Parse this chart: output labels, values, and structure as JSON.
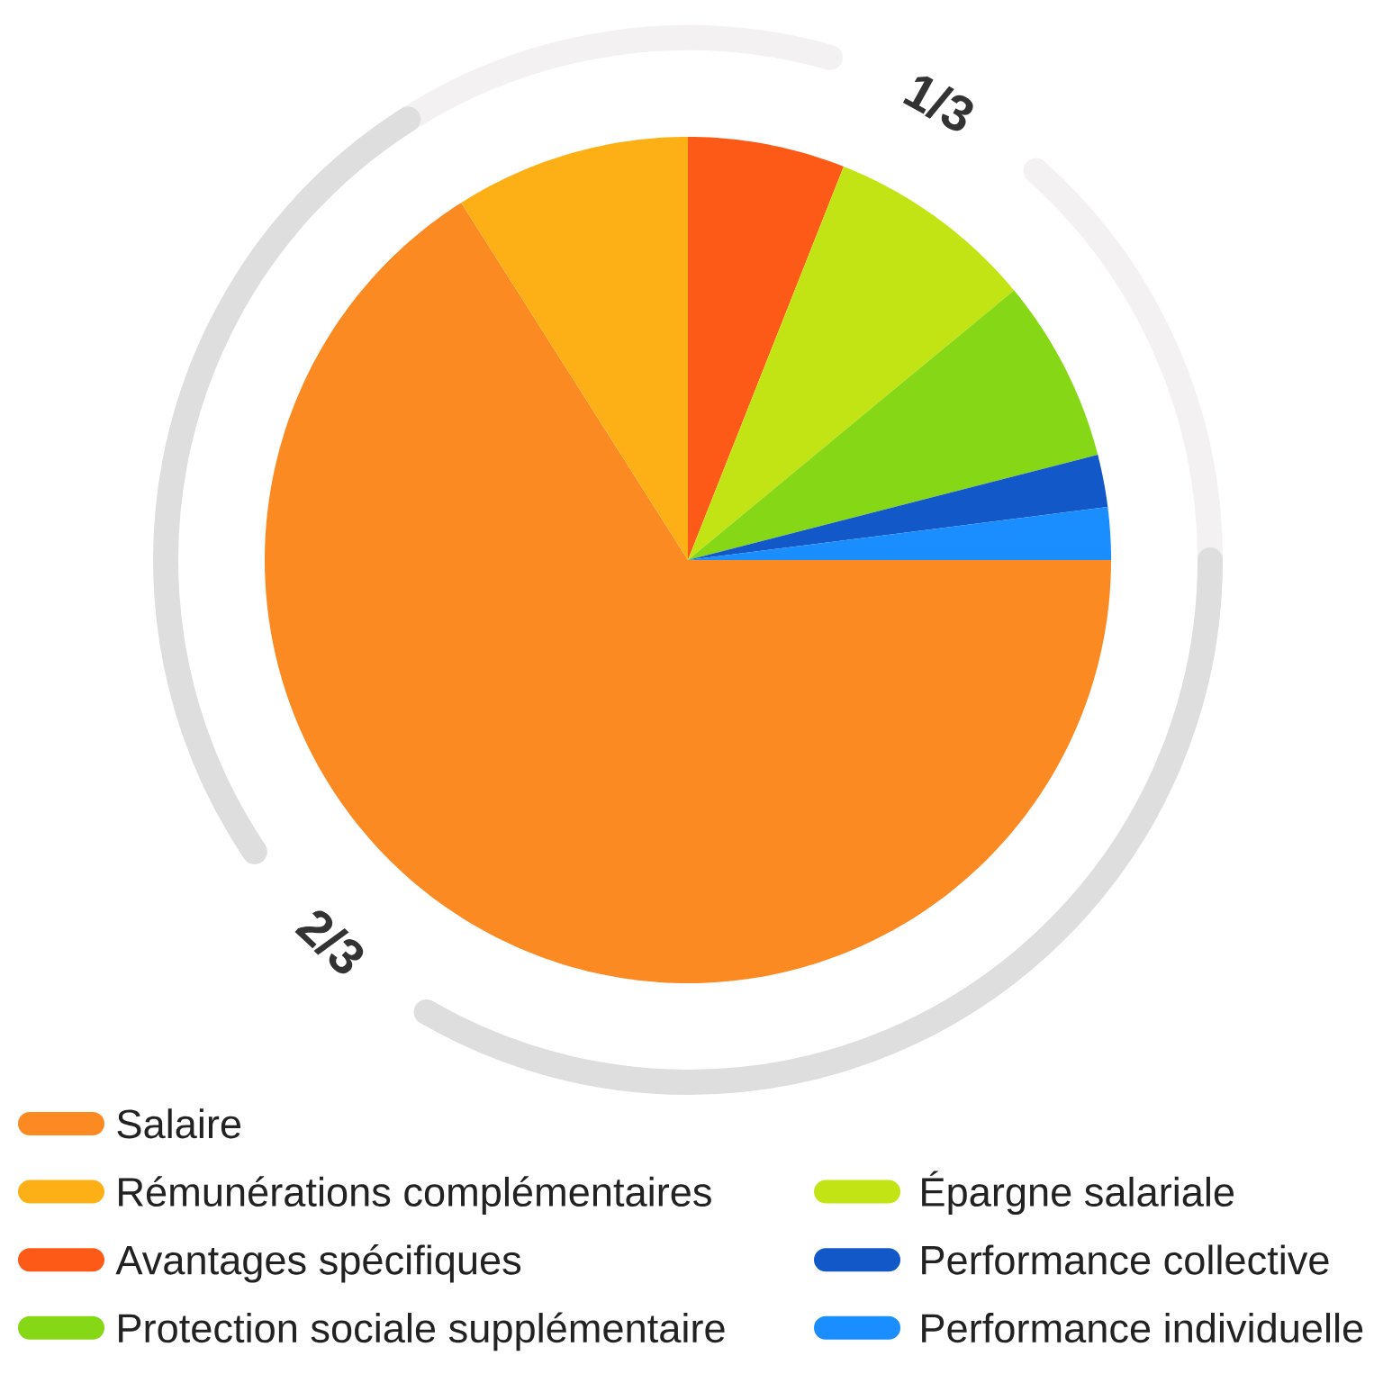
{
  "chart_data": {
    "type": "pie",
    "categories": [
      "Salaire",
      "Rémunérations complémentaires",
      "Avantages spécifiques",
      "Épargne salariale",
      "Protection sociale supplémentaire",
      "Performance collective",
      "Performance individuelle"
    ],
    "values": [
      66,
      9,
      6,
      8,
      7,
      2,
      2
    ],
    "colors": [
      "#fb8a22",
      "#fdb016",
      "#fd5a17",
      "#c2e414",
      "#86d816",
      "#1358c9",
      "#1a8dff"
    ],
    "annotations": [
      "2/3",
      "1/3"
    ],
    "legend": "bottom"
  }
}
